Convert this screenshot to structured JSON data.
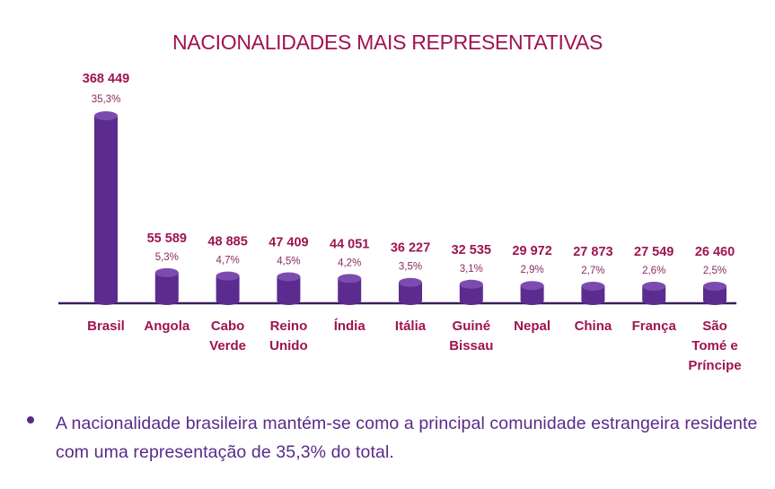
{
  "chart_data": {
    "type": "bar",
    "title": "NACIONALIDADES MAIS REPRESENTATIVAS",
    "categories": [
      [
        "Brasil"
      ],
      [
        "Angola"
      ],
      [
        "Cabo",
        "Verde"
      ],
      [
        "Reino",
        "Unido"
      ],
      [
        "Índia"
      ],
      [
        "Itália"
      ],
      [
        "Guiné",
        "Bissau"
      ],
      [
        "Nepal"
      ],
      [
        "China"
      ],
      [
        "França"
      ],
      [
        "São",
        "Tomé e",
        "Príncipe"
      ]
    ],
    "values": [
      368449,
      55589,
      48885,
      47409,
      44051,
      36227,
      32535,
      29972,
      27873,
      27549,
      26460
    ],
    "value_labels": [
      "368 449",
      "55 589",
      "48 885",
      "47 409",
      "44 051",
      "36 227",
      "32 535",
      "29 972",
      "27 873",
      "27 549",
      "26 460"
    ],
    "percent_labels": [
      "35,3%",
      "5,3%",
      "4,7%",
      "4,5%",
      "4,2%",
      "3,5%",
      "3,1%",
      "2,9%",
      "2,7%",
      "2,6%",
      "2,5%"
    ],
    "xlabel": "",
    "ylabel": "",
    "grid": false,
    "legend": "none",
    "colors": {
      "bar": "#5b2b8f",
      "bar_top": "#7c4bb0",
      "value_text": "#9e1450",
      "percent_text": "#8a2a60",
      "category_text": "#9e1450",
      "axis": "#3b1f5c"
    }
  },
  "note": {
    "text": "A nacionalidade brasileira mantém-se como a principal comunidade estrangeira residente com uma representação de 35,3% do total."
  }
}
